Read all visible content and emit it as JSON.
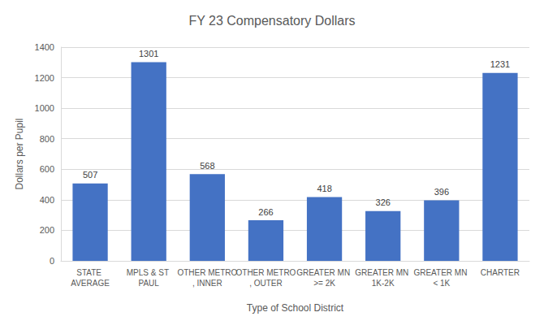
{
  "chart_data": {
    "type": "bar",
    "title": "FY 23 Compensatory Dollars",
    "x_label": "Type of School District",
    "y_label": "Dollars per Pupil",
    "categories": [
      "STATE AVERAGE",
      "MPLS & ST PAUL",
      "OTHER METRO, INNER",
      "OTHER METRO, OUTER",
      "GREATER MN >= 2K",
      "GREATER MN 1K-2K",
      "GREATER MN < 1K",
      "CHARTER"
    ],
    "values": [
      507,
      1301,
      568,
      266,
      418,
      326,
      396,
      1231
    ],
    "color": "#4472c4",
    "ylim": [
      0,
      1400
    ],
    "yticks": [
      0,
      200,
      400,
      600,
      800,
      1000,
      1200,
      1400
    ],
    "grid": true,
    "data_labels": true
  }
}
